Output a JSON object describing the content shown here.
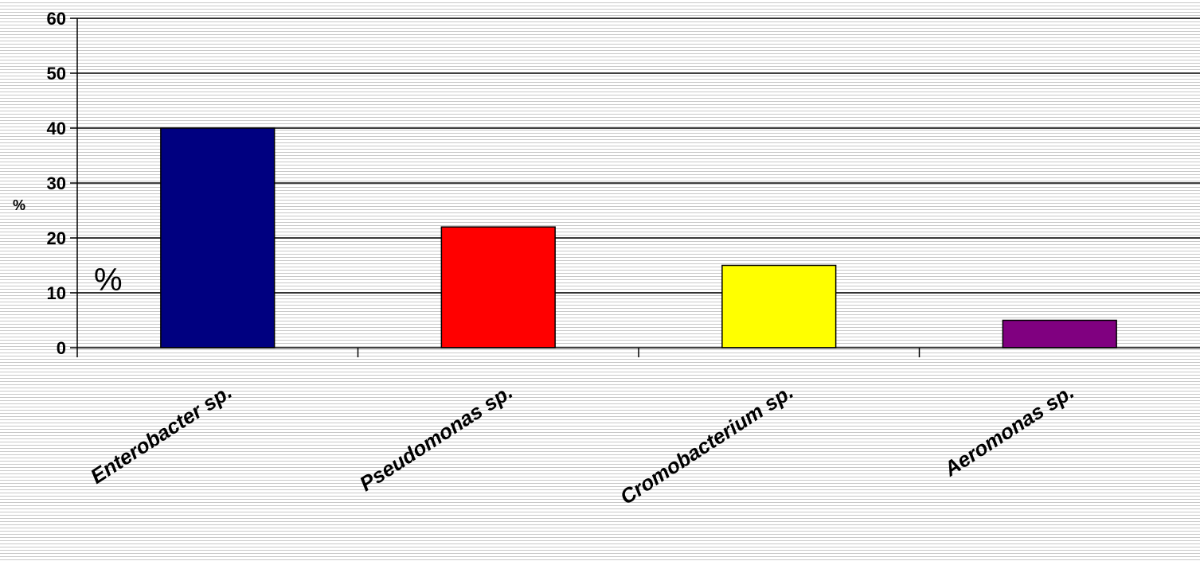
{
  "chart_data": {
    "type": "bar",
    "title": "",
    "xlabel": "",
    "ylabel": "%",
    "annotation": "%",
    "categories": [
      "Enterobacter sp.",
      "Pseudomonas sp.",
      "Cromobacterium sp.",
      "Aeromonas sp."
    ],
    "values": [
      40,
      22,
      15,
      5
    ],
    "colors": [
      "#000080",
      "#ff0000",
      "#ffff00",
      "#800080"
    ],
    "ylim": [
      0,
      60
    ],
    "yticks": [
      0,
      10,
      20,
      30,
      40,
      50,
      60
    ],
    "grid": true,
    "legend": "none"
  }
}
